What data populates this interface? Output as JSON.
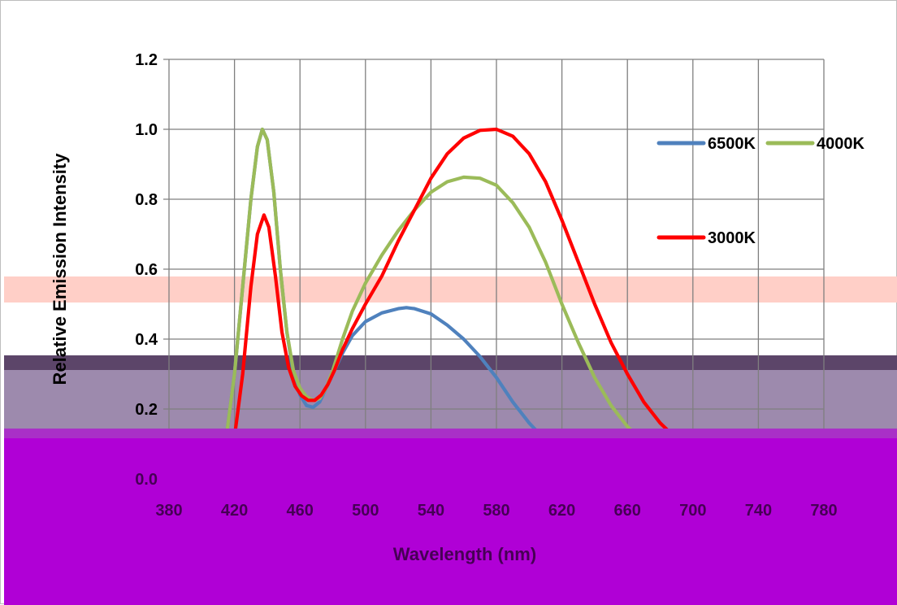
{
  "chart_data": {
    "type": "line",
    "title": "",
    "xlabel": "Wavelength (nm)",
    "ylabel": "Relative Emission Intensity",
    "xlim": [
      380,
      780
    ],
    "ylim": [
      0,
      1.2
    ],
    "x_ticks": [
      380,
      420,
      460,
      500,
      540,
      580,
      620,
      660,
      700,
      740,
      780
    ],
    "y_ticks": [
      0.0,
      0.2,
      0.4,
      0.6,
      0.8,
      1.0,
      1.2
    ],
    "y_tick_labels": [
      "0.0",
      "0.2",
      "0.4",
      "0.6",
      "0.8",
      "1.0",
      "1.2"
    ],
    "grid": true,
    "legend_position": "right",
    "series": [
      {
        "name": "6500K",
        "color": "#4f81bd",
        "points": [
          [
            380,
            0
          ],
          [
            390,
            0
          ],
          [
            400,
            0.005
          ],
          [
            410,
            0.03
          ],
          [
            415,
            0.12
          ],
          [
            420,
            0.3
          ],
          [
            425,
            0.55
          ],
          [
            430,
            0.8
          ],
          [
            434,
            0.95
          ],
          [
            437,
            1.0
          ],
          [
            440,
            0.97
          ],
          [
            444,
            0.82
          ],
          [
            448,
            0.6
          ],
          [
            452,
            0.42
          ],
          [
            456,
            0.3
          ],
          [
            460,
            0.24
          ],
          [
            464,
            0.21
          ],
          [
            468,
            0.205
          ],
          [
            472,
            0.22
          ],
          [
            476,
            0.26
          ],
          [
            480,
            0.3
          ],
          [
            486,
            0.36
          ],
          [
            492,
            0.41
          ],
          [
            500,
            0.45
          ],
          [
            510,
            0.475
          ],
          [
            520,
            0.487
          ],
          [
            525,
            0.49
          ],
          [
            530,
            0.487
          ],
          [
            540,
            0.472
          ],
          [
            550,
            0.44
          ],
          [
            560,
            0.4
          ],
          [
            570,
            0.35
          ],
          [
            580,
            0.29
          ],
          [
            590,
            0.22
          ],
          [
            600,
            0.16
          ],
          [
            610,
            0.11
          ],
          [
            620,
            0.075
          ],
          [
            630,
            0.05
          ],
          [
            640,
            0.032
          ],
          [
            650,
            0.02
          ],
          [
            660,
            0.012
          ],
          [
            670,
            0.007
          ],
          [
            680,
            0.004
          ],
          [
            700,
            0.002
          ],
          [
            720,
            0.001
          ],
          [
            740,
            0.0005
          ],
          [
            760,
            0.0002
          ],
          [
            770,
            0.0001
          ]
        ]
      },
      {
        "name": "4000K",
        "color": "#9bbb59",
        "points": [
          [
            380,
            0
          ],
          [
            390,
            0
          ],
          [
            400,
            0.005
          ],
          [
            410,
            0.03
          ],
          [
            415,
            0.12
          ],
          [
            420,
            0.3
          ],
          [
            425,
            0.55
          ],
          [
            430,
            0.8
          ],
          [
            434,
            0.95
          ],
          [
            437,
            1.0
          ],
          [
            440,
            0.97
          ],
          [
            444,
            0.82
          ],
          [
            448,
            0.6
          ],
          [
            452,
            0.42
          ],
          [
            456,
            0.31
          ],
          [
            460,
            0.26
          ],
          [
            464,
            0.235
          ],
          [
            468,
            0.225
          ],
          [
            472,
            0.23
          ],
          [
            476,
            0.26
          ],
          [
            480,
            0.31
          ],
          [
            486,
            0.4
          ],
          [
            492,
            0.48
          ],
          [
            500,
            0.56
          ],
          [
            510,
            0.64
          ],
          [
            520,
            0.71
          ],
          [
            530,
            0.77
          ],
          [
            540,
            0.82
          ],
          [
            550,
            0.85
          ],
          [
            560,
            0.863
          ],
          [
            570,
            0.86
          ],
          [
            580,
            0.84
          ],
          [
            590,
            0.79
          ],
          [
            600,
            0.72
          ],
          [
            610,
            0.62
          ],
          [
            620,
            0.5
          ],
          [
            630,
            0.39
          ],
          [
            640,
            0.29
          ],
          [
            650,
            0.21
          ],
          [
            660,
            0.15
          ],
          [
            670,
            0.105
          ],
          [
            680,
            0.07
          ],
          [
            690,
            0.045
          ],
          [
            700,
            0.03
          ],
          [
            710,
            0.018
          ],
          [
            720,
            0.01
          ],
          [
            740,
            0.004
          ],
          [
            760,
            0.001
          ],
          [
            770,
            0.0005
          ]
        ]
      },
      {
        "name": "3000K",
        "color": "#ff0000",
        "points": [
          [
            380,
            0
          ],
          [
            390,
            0
          ],
          [
            400,
            0.002
          ],
          [
            410,
            0.01
          ],
          [
            415,
            0.04
          ],
          [
            420,
            0.12
          ],
          [
            425,
            0.3
          ],
          [
            430,
            0.55
          ],
          [
            434,
            0.7
          ],
          [
            438,
            0.755
          ],
          [
            441,
            0.72
          ],
          [
            445,
            0.58
          ],
          [
            449,
            0.42
          ],
          [
            453,
            0.32
          ],
          [
            457,
            0.265
          ],
          [
            461,
            0.238
          ],
          [
            465,
            0.225
          ],
          [
            469,
            0.225
          ],
          [
            473,
            0.24
          ],
          [
            477,
            0.27
          ],
          [
            481,
            0.31
          ],
          [
            486,
            0.37
          ],
          [
            492,
            0.43
          ],
          [
            500,
            0.5
          ],
          [
            510,
            0.58
          ],
          [
            520,
            0.68
          ],
          [
            530,
            0.77
          ],
          [
            540,
            0.86
          ],
          [
            550,
            0.93
          ],
          [
            560,
            0.975
          ],
          [
            570,
            0.997
          ],
          [
            580,
            1.0
          ],
          [
            590,
            0.98
          ],
          [
            600,
            0.93
          ],
          [
            610,
            0.85
          ],
          [
            620,
            0.74
          ],
          [
            630,
            0.62
          ],
          [
            640,
            0.5
          ],
          [
            650,
            0.39
          ],
          [
            660,
            0.3
          ],
          [
            670,
            0.22
          ],
          [
            680,
            0.16
          ],
          [
            690,
            0.115
          ],
          [
            700,
            0.08
          ],
          [
            710,
            0.055
          ],
          [
            720,
            0.038
          ],
          [
            730,
            0.025
          ],
          [
            740,
            0.016
          ],
          [
            750,
            0.01
          ],
          [
            760,
            0.006
          ],
          [
            770,
            0.004
          ],
          [
            780,
            0.003
          ]
        ]
      }
    ]
  },
  "overlays": {
    "band_pink_color": "#ffcfc7",
    "band_dark_color": "#5c4569",
    "band_lavender_color": "#9d8aad",
    "band_magenta_color": "#b000d6"
  }
}
